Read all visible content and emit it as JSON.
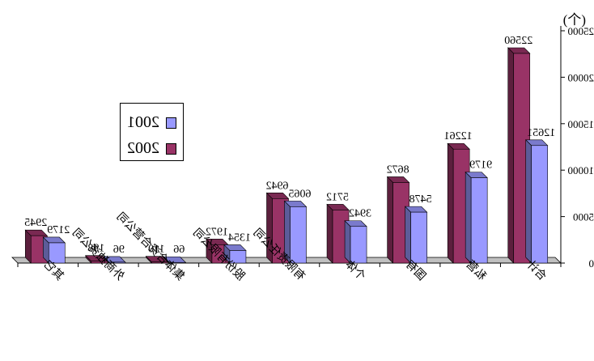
{
  "chart_data": {
    "type": "bar",
    "mirrored": true,
    "unit": "(个)",
    "categories": [
      "合计",
      "私营",
      "国有",
      "个体",
      "有限责任公司",
      "股份有限公司",
      "集体合资合营公司",
      "外商独资公司",
      "其它"
    ],
    "series": [
      {
        "name": "2002",
        "color": "#993366",
        "values": [
          22560,
          12261,
          8672,
          5712,
          6942,
          1972,
          110,
          198,
          2945
        ]
      },
      {
        "name": "2001",
        "color": "#9999ff",
        "values": [
          12651,
          9179,
          5478,
          3942,
          6065,
          1354,
          66,
          96,
          2179
        ]
      }
    ],
    "ylim": [
      0,
      25000
    ],
    "yticks": [
      0,
      5000,
      10000,
      15000,
      20000,
      25000
    ],
    "legend_position": "left",
    "grid": false
  }
}
